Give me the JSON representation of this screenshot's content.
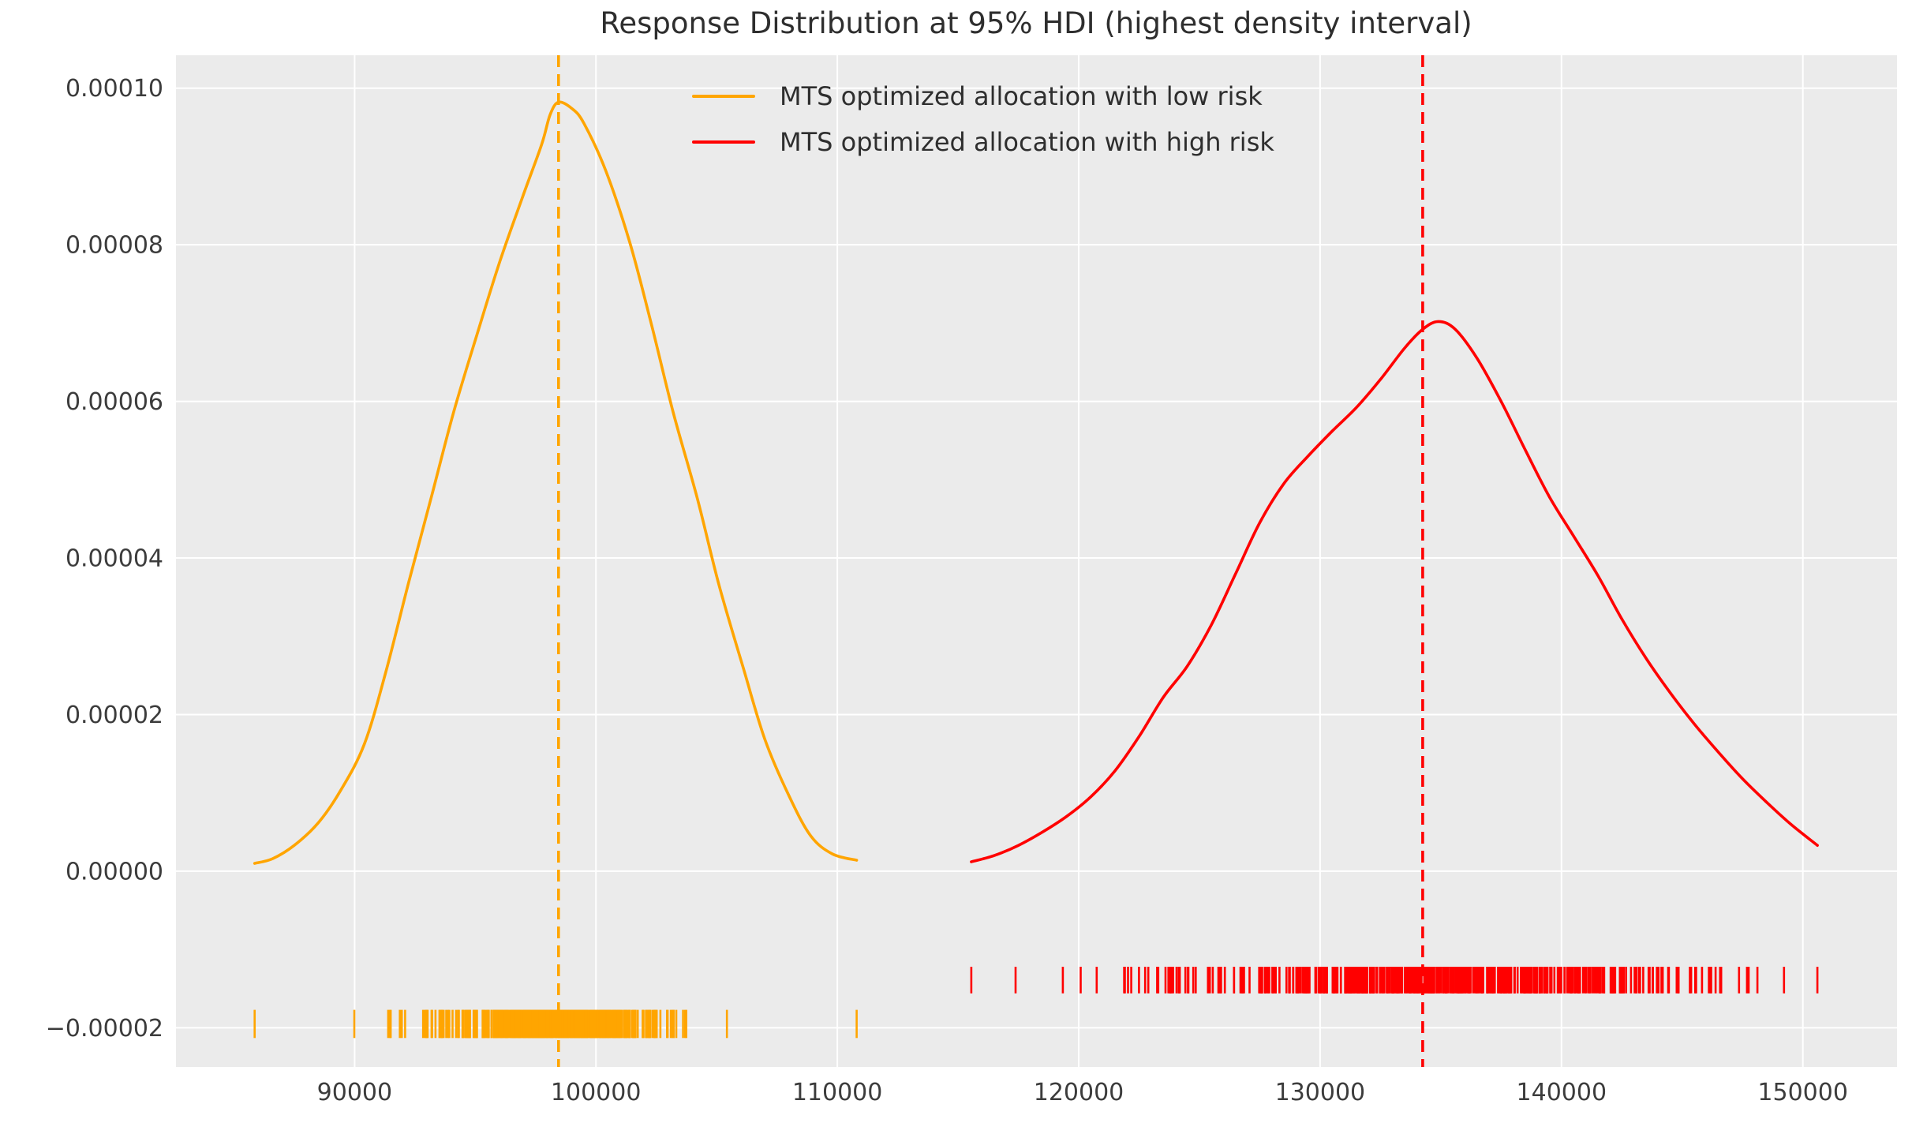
{
  "title": "Response Distribution at 95% HDI (highest density interval)",
  "legend": {
    "position": "upper center",
    "items": [
      {
        "label": "MTS optimized allocation with low risk",
        "color": "#FFA500"
      },
      {
        "label": "MTS optimized allocation with high risk",
        "color": "#FF0000"
      }
    ]
  },
  "colors": {
    "figure_bg": "#FFFFFF",
    "plot_bg": "#EBEBEB",
    "grid": "#FFFFFF",
    "tick_text": "#3C3C3C",
    "title_text": "#2E2E2E"
  },
  "chart_data": {
    "type": "line",
    "title": "Response Distribution at 95% HDI (highest density interval)",
    "xlabel": "",
    "ylabel": "",
    "grid": true,
    "legend_position": "upper center",
    "xlim": [
      82600,
      153900
    ],
    "ylim": [
      -2.5e-05,
      0.0001042
    ],
    "x_ticks": {
      "values": [
        90000,
        100000,
        110000,
        120000,
        130000,
        140000,
        150000
      ],
      "labels": [
        "90000",
        "100000",
        "110000",
        "120000",
        "130000",
        "140000",
        "150000"
      ]
    },
    "y_ticks": {
      "values": [
        -2e-05,
        0.0,
        2e-05,
        4e-05,
        6e-05,
        8e-05,
        0.0001
      ],
      "labels": [
        "−0.00002",
        "0.00000",
        "0.00002",
        "0.00004",
        "0.00006",
        "0.00008",
        "0.00010"
      ]
    },
    "y_unit": 1e-05,
    "series": [
      {
        "name": "MTS optimized allocation with low risk",
        "color": "#FFA500",
        "line_width": 3.6,
        "hdi_mode_line": {
          "x": 98450,
          "style": "dashed"
        },
        "peak": {
          "x": 98450,
          "y_1e5": 9.82
        },
        "points_x": [
          85860,
          86600,
          87500,
          88500,
          89400,
          90400,
          91300,
          92250,
          93200,
          94100,
          95070,
          96000,
          96970,
          97750,
          98100,
          98450,
          99000,
          99500,
          100400,
          101400,
          102300,
          103200,
          104200,
          105100,
          106100,
          107000,
          108000,
          108900,
          109800,
          110800
        ],
        "points_y_1e5": [
          0.1,
          0.16,
          0.33,
          0.62,
          1.02,
          1.62,
          2.55,
          3.7,
          4.8,
          5.86,
          6.85,
          7.77,
          8.62,
          9.28,
          9.66,
          9.82,
          9.74,
          9.55,
          8.95,
          8.03,
          6.98,
          5.86,
          4.76,
          3.65,
          2.6,
          1.68,
          0.96,
          0.45,
          0.22,
          0.14
        ],
        "rug": {
          "n": 430,
          "mean": 98350,
          "sd": 2550,
          "min": 85860,
          "max": 110800,
          "seed": 20240601,
          "y_center_1e5": -1.95,
          "tick_height_1e5": 0.36
        }
      },
      {
        "name": "MTS optimized allocation with high risk",
        "color": "#FF0000",
        "line_width": 3.6,
        "hdi_mode_line": {
          "x": 134250,
          "style": "dashed"
        },
        "peak": {
          "x": 134900,
          "y_1e5": 7.02
        },
        "points_x": [
          115550,
          116500,
          117500,
          118500,
          119500,
          120500,
          121500,
          122500,
          123500,
          124500,
          125500,
          126500,
          127500,
          128500,
          129500,
          130500,
          131500,
          132500,
          133500,
          134250,
          134900,
          135600,
          136500,
          137500,
          138500,
          139500,
          140500,
          141500,
          142500,
          143500,
          144500,
          145500,
          146500,
          147500,
          148500,
          149500,
          150600
        ],
        "points_y_1e5": [
          0.12,
          0.2,
          0.33,
          0.5,
          0.7,
          0.95,
          1.28,
          1.72,
          2.22,
          2.62,
          3.15,
          3.8,
          4.45,
          4.95,
          5.3,
          5.62,
          5.92,
          6.28,
          6.68,
          6.92,
          7.02,
          6.92,
          6.55,
          6.0,
          5.38,
          4.78,
          4.28,
          3.78,
          3.22,
          2.72,
          2.28,
          1.88,
          1.52,
          1.18,
          0.88,
          0.6,
          0.33
        ],
        "rug": {
          "n": 480,
          "mean": 134600,
          "sd": 5600,
          "min": 115550,
          "max": 150600,
          "seed": 987654,
          "y_center_1e5": -1.39,
          "tick_height_1e5": 0.34
        }
      }
    ]
  }
}
